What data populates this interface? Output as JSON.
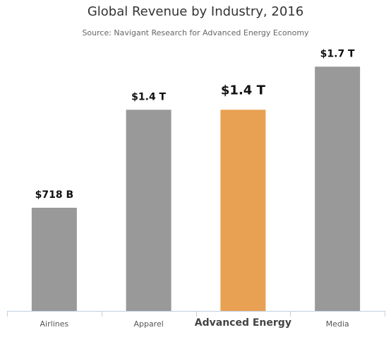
{
  "chart_data": {
    "type": "bar",
    "title": "Global Revenue by Industry, 2016",
    "subtitle": "Source: Navigant Research for Advanced Energy Economy",
    "categories": [
      "Airlines",
      "Apparel",
      "Advanced Energy",
      "Media"
    ],
    "values": [
      0.718,
      1.4,
      1.4,
      1.7
    ],
    "data_labels": [
      "$718 B",
      "$1.4 T",
      "$1.4 T",
      "$1.7 T"
    ],
    "highlight_category": "Advanced Energy",
    "ylim": [
      0,
      1.8
    ],
    "grid": false,
    "legend": "none",
    "colors": {
      "bar": "#999999",
      "highlight": "#e8a052",
      "axis": "#c0d0e0"
    }
  }
}
